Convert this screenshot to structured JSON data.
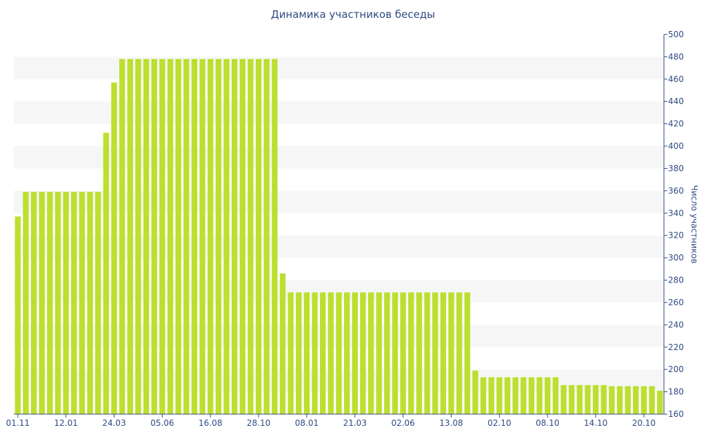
{
  "chart_data": {
    "type": "bar",
    "title": "Динамика участников беседы",
    "ylabel": "Число участников",
    "xlabel": "",
    "ylim": [
      160,
      500
    ],
    "yticks": [
      160,
      180,
      200,
      220,
      240,
      260,
      280,
      300,
      320,
      340,
      360,
      380,
      400,
      420,
      440,
      460,
      480,
      500
    ],
    "xtick_labels": [
      "01.11",
      "12.01",
      "24.03",
      "05.06",
      "16.08",
      "28.10",
      "08.01",
      "21.03",
      "02.06",
      "13.08",
      "02.10",
      "08.10",
      "14.10",
      "20.10"
    ],
    "y_axis_position": "right",
    "grid": "alternating horizontal bands",
    "colors": {
      "bar": "#bddf2f",
      "band": "#f6f6f6",
      "text": "#2f4a82",
      "axis": "#2f4a82"
    },
    "values": [
      337,
      359,
      359,
      359,
      359,
      359,
      359,
      359,
      359,
      359,
      359,
      412,
      457,
      478,
      478,
      478,
      478,
      478,
      478,
      478,
      478,
      478,
      478,
      478,
      478,
      478,
      478,
      478,
      478,
      478,
      478,
      478,
      478,
      286,
      269,
      269,
      269,
      269,
      269,
      269,
      269,
      269,
      269,
      269,
      269,
      269,
      269,
      269,
      269,
      269,
      269,
      269,
      269,
      269,
      269,
      269,
      269,
      199,
      193,
      193,
      193,
      193,
      193,
      193,
      193,
      193,
      193,
      193,
      186,
      186,
      186,
      186,
      186,
      186,
      185,
      185,
      185,
      185,
      185,
      185,
      181
    ]
  }
}
